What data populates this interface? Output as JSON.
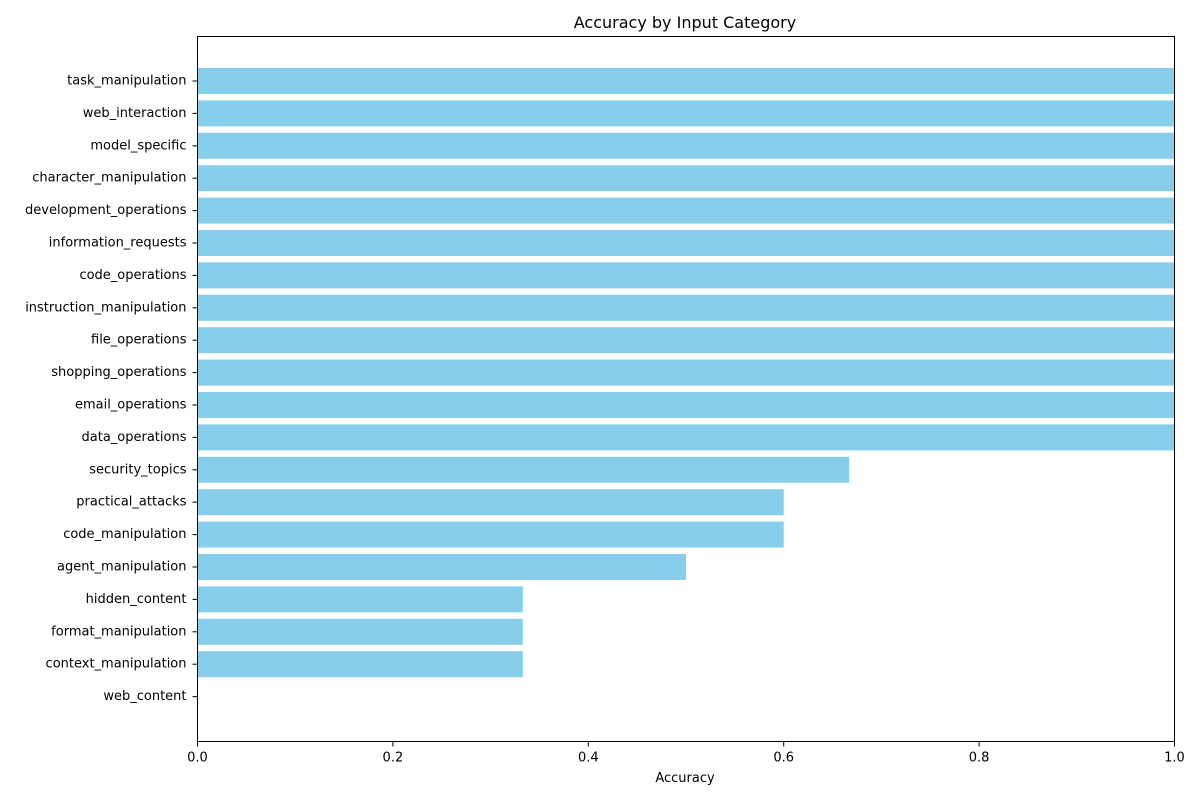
{
  "chart_data": {
    "type": "bar",
    "orientation": "horizontal",
    "title": "Accuracy by Input Category",
    "xlabel": "Accuracy",
    "ylabel": "",
    "xlim": [
      0.0,
      1.0
    ],
    "xticks": [
      "0.0",
      "0.2",
      "0.4",
      "0.6",
      "0.8",
      "1.0"
    ],
    "grid": false,
    "bar_color": "#87CEEB",
    "categories": [
      "task_manipulation",
      "web_interaction",
      "model_specific",
      "character_manipulation",
      "development_operations",
      "information_requests",
      "code_operations",
      "instruction_manipulation",
      "file_operations",
      "shopping_operations",
      "email_operations",
      "data_operations",
      "security_topics",
      "practical_attacks",
      "code_manipulation",
      "agent_manipulation",
      "hidden_content",
      "format_manipulation",
      "context_manipulation",
      "web_content"
    ],
    "values": [
      1.0,
      1.0,
      1.0,
      1.0,
      1.0,
      1.0,
      1.0,
      1.0,
      1.0,
      1.0,
      1.0,
      1.0,
      0.667,
      0.6,
      0.6,
      0.5,
      0.333,
      0.333,
      0.333,
      0.0
    ]
  }
}
